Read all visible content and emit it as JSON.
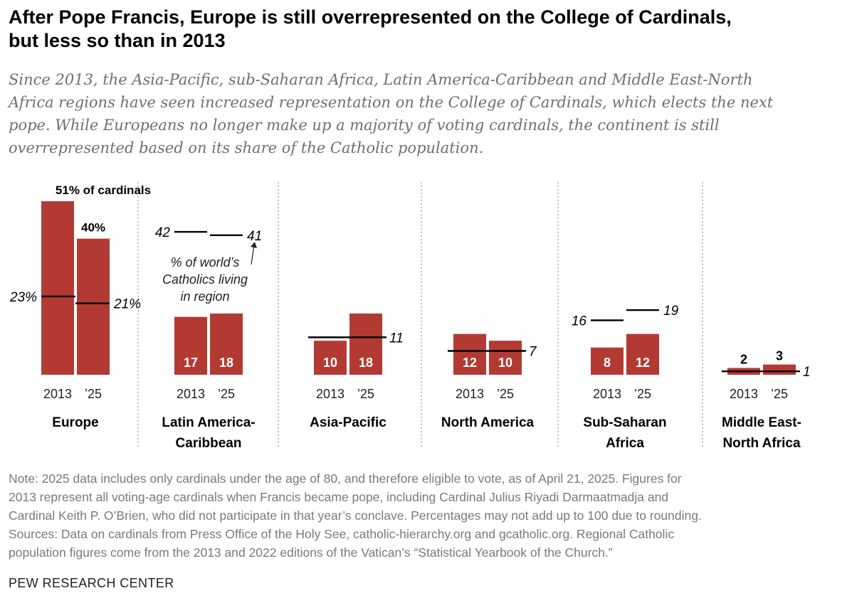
{
  "title_lines": [
    "After Pope Francis, Europe is still overrepresented on the College of Cardinals,",
    "but less so than in 2013"
  ],
  "subtitle_lines": [
    "Since 2013, the Asia-Pacific, sub-Saharan Africa, Latin America-Caribbean and Middle East-North",
    "Africa regions have seen increased representation on the College of Cardinals, which elects the next",
    "pope. While Europeans no longer make up a majority of voting cardinals, the continent is still",
    "overrepresented based on its share of the Catholic population."
  ],
  "chart_data": {
    "type": "bar",
    "title": "After Pope Francis, Europe is still overrepresented on the College of Cardinals, but less so than in 2013",
    "bar_series_unit": "% of cardinals",
    "marker_series_label": "% of world’s Catholics living in region",
    "year_labels": [
      "2013",
      "’25"
    ],
    "ylim": [
      0,
      51
    ],
    "bar_color": "#b33a33",
    "marker_color": "#000000",
    "groups": [
      {
        "name_lines": [
          "Europe"
        ],
        "cardinals": [
          51,
          40
        ],
        "cardinal_labels": [
          "51% of cardinals",
          "40%"
        ],
        "catholics": [
          23,
          21
        ],
        "catholic_labels": [
          "23%",
          "21%"
        ]
      },
      {
        "name_lines": [
          "Latin America-",
          "Caribbean"
        ],
        "cardinals": [
          17,
          18
        ],
        "cardinal_labels": [
          "17",
          "18"
        ],
        "catholics": [
          42,
          41
        ],
        "catholic_labels": [
          "42",
          "41"
        ]
      },
      {
        "name_lines": [
          "Asia-Pacific"
        ],
        "cardinals": [
          10,
          18
        ],
        "cardinal_labels": [
          "10",
          "18"
        ],
        "catholics": [
          11,
          11
        ],
        "catholic_labels": [
          "",
          "11"
        ]
      },
      {
        "name_lines": [
          "North America"
        ],
        "cardinals": [
          12,
          10
        ],
        "cardinal_labels": [
          "12",
          "10"
        ],
        "catholics": [
          7,
          7
        ],
        "catholic_labels": [
          "",
          "7"
        ]
      },
      {
        "name_lines": [
          "Sub-Saharan",
          "Africa"
        ],
        "cardinals": [
          8,
          12
        ],
        "cardinal_labels": [
          "8",
          "12"
        ],
        "catholics": [
          16,
          19
        ],
        "catholic_labels": [
          "16",
          "19"
        ]
      },
      {
        "name_lines": [
          "Middle East-",
          "North Africa"
        ],
        "cardinals": [
          2,
          3
        ],
        "cardinal_labels": [
          "2",
          "3"
        ],
        "catholics": [
          1,
          1
        ],
        "catholic_labels": [
          "",
          "1"
        ]
      }
    ],
    "annotation_lines": [
      "% of world’s",
      "Catholics living",
      "in region"
    ]
  },
  "note_lines": [
    "Note: 2025 data includes only cardinals under the age of 80, and therefore eligible to vote, as of April 21, 2025. Figures for",
    "2013 represent all voting-age cardinals when Francis became pope, including Cardinal Julius Riyadi Darmaatmadja and",
    "Cardinal Keith P. O’Brien, who did not participate in that year’s conclave. Percentages may not add up to 100 due to rounding.",
    "Sources: Data on cardinals from Press Office of the Holy See, catholic-hierarchy.org and gcatholic.org. Regional Catholic",
    "population figures come from the 2013 and 2022 editions of the Vatican’s “Statistical Yearbook of the Church.”"
  ],
  "source_org": "PEW RESEARCH CENTER"
}
